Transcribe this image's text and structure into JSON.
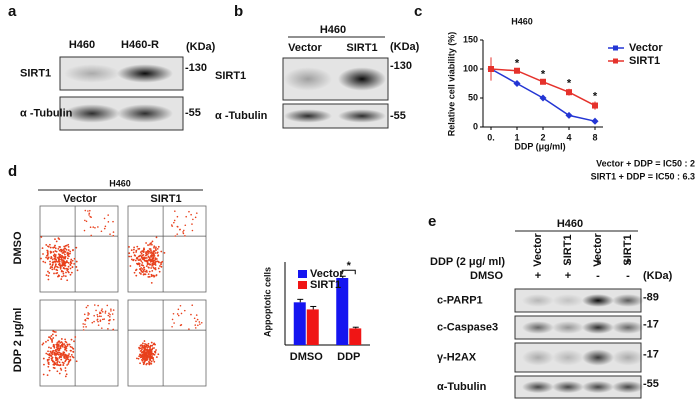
{
  "panels": {
    "a": {
      "label": "a",
      "lanes": [
        "H460",
        "H460-R"
      ],
      "unit": "(KDa)",
      "rows": [
        {
          "name": "SIRT1",
          "kda": "-130"
        },
        {
          "name": "α -Tubulin",
          "kda": "-55"
        }
      ]
    },
    "b": {
      "label": "b",
      "group": "H460",
      "lanes": [
        "Vector",
        "SIRT1"
      ],
      "unit": "(KDa)",
      "rows": [
        {
          "name": "SIRT1",
          "kda": "-130"
        },
        {
          "name": "α -Tubulin",
          "kda": "-55"
        }
      ]
    },
    "c": {
      "label": "c",
      "chart_data": {
        "type": "line",
        "title": "H460",
        "x_label": "DDP (μg/ml)",
        "y_label": "Relative cell viability (%)",
        "categories": [
          "0.",
          "1",
          "2",
          "4",
          "8"
        ],
        "ylim": [
          0,
          150
        ],
        "yticks": [
          0,
          50,
          100,
          150
        ],
        "series": [
          {
            "name": "Vector",
            "color": "#2436d4",
            "values": [
              100,
              75,
              50,
              20,
              10
            ],
            "errors": [
              15,
              4,
              3,
              2,
              1
            ]
          },
          {
            "name": "SIRT1",
            "color": "#e5322c",
            "values": [
              100,
              97,
              78,
              60,
              37
            ],
            "errors": [
              20,
              4,
              4,
              6,
              7
            ]
          }
        ],
        "significance": [
          null,
          "*",
          "*",
          "*",
          "*"
        ],
        "legend": "right"
      },
      "notes": [
        "Vector + DDP = IC50 : 2",
        "SIRT1 + DDP = IC50 : 6.3"
      ]
    },
    "d": {
      "label": "d",
      "group": "H460",
      "columns": [
        "Vector",
        "SIRT1"
      ],
      "rows": [
        "DMSO",
        "DDP 2 μg/ml"
      ],
      "chart_data": {
        "type": "bar",
        "y_label": "Appoptotic cells",
        "categories": [
          "DMSO",
          "DDP"
        ],
        "ylim": [
          0,
          14
        ],
        "series": [
          {
            "name": "Vector",
            "color": "#1515f0",
            "values": [
              7.2,
              11.3
            ],
            "errors": [
              0.5,
              0.3
            ]
          },
          {
            "name": "SIRT1",
            "color": "#f01515",
            "values": [
              6,
              2.8
            ],
            "errors": [
              0.5,
              0.2
            ]
          }
        ],
        "significance": [
          null,
          "*"
        ],
        "legend": "top"
      }
    },
    "e": {
      "label": "e",
      "group": "H460",
      "lanes": [
        "Vector",
        "SIRT1",
        "Vector",
        "SIRT1"
      ],
      "unit": "(KDa)",
      "treatments": [
        {
          "name": "DDP (2 μg/ ml)",
          "signs": [
            "-",
            "-",
            "+",
            "+"
          ]
        },
        {
          "name": "DMSO",
          "signs": [
            "+",
            "+",
            "-",
            "-"
          ]
        }
      ],
      "rows": [
        {
          "name": "c-PARP1",
          "kda": "-89"
        },
        {
          "name": "c-Caspase3",
          "kda": "-17"
        },
        {
          "name": "γ-H2AX",
          "kda": "-17"
        },
        {
          "name": "α-Tubulin",
          "kda": "-55"
        }
      ]
    }
  }
}
